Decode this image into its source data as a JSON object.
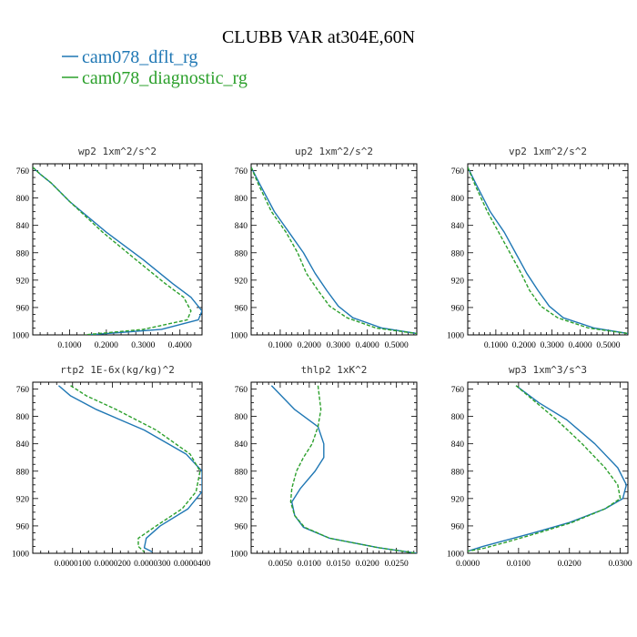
{
  "figure": {
    "title": "CLUBB VAR at304E,60N",
    "legend": [
      {
        "label": "cam078_dflt_rg",
        "color": "#1f77b4"
      },
      {
        "label": "cam078_diagnostic_rg",
        "color": "#2ca02c"
      }
    ]
  },
  "chart_data": [
    {
      "type": "line",
      "title": "wp2   1xm^2/s^2",
      "ylim": [
        1000,
        750
      ],
      "y_ticks": [
        760,
        800,
        840,
        880,
        920,
        960,
        1000
      ],
      "xlim": [
        0.0,
        0.46
      ],
      "x_ticks": [
        0.1,
        0.2,
        0.3,
        0.4
      ],
      "x_tick_labels": [
        "0.1000",
        "0.2000",
        "0.3000",
        "0.4000"
      ],
      "series": [
        {
          "color": "#1f77b4",
          "x": [
            0.0,
            0.02,
            0.05,
            0.1,
            0.2,
            0.3,
            0.38,
            0.43,
            0.46,
            0.45,
            0.35,
            0.15
          ],
          "y": [
            755,
            765,
            778,
            805,
            850,
            890,
            925,
            945,
            965,
            978,
            992,
            1000
          ]
        },
        {
          "color": "#2ca02c",
          "dashed": true,
          "x": [
            0.0,
            0.02,
            0.05,
            0.1,
            0.19,
            0.28,
            0.36,
            0.41,
            0.43,
            0.42,
            0.3,
            0.14
          ],
          "y": [
            755,
            765,
            778,
            805,
            850,
            890,
            925,
            945,
            965,
            978,
            992,
            1000
          ]
        }
      ]
    },
    {
      "type": "line",
      "title": "up2   1xm^2/s^2",
      "ylim": [
        1000,
        750
      ],
      "y_ticks": [
        760,
        800,
        840,
        880,
        920,
        960,
        1000
      ],
      "xlim": [
        0.0,
        0.57
      ],
      "x_ticks": [
        0.1,
        0.2,
        0.3,
        0.4,
        0.5
      ],
      "x_tick_labels": [
        "0.1000",
        "0.2000",
        "0.3000",
        "0.4000",
        "0.5000"
      ],
      "series": [
        {
          "color": "#1f77b4",
          "x": [
            0.0,
            0.03,
            0.08,
            0.13,
            0.18,
            0.22,
            0.26,
            0.3,
            0.35,
            0.45,
            0.57
          ],
          "y": [
            755,
            780,
            820,
            850,
            880,
            910,
            935,
            958,
            975,
            990,
            998
          ]
        },
        {
          "color": "#2ca02c",
          "dashed": true,
          "x": [
            0.0,
            0.025,
            0.07,
            0.12,
            0.16,
            0.19,
            0.23,
            0.27,
            0.33,
            0.43,
            0.57
          ],
          "y": [
            755,
            780,
            820,
            850,
            880,
            910,
            935,
            958,
            975,
            990,
            998
          ]
        }
      ]
    },
    {
      "type": "line",
      "title": "vp2   1xm^2/s^2",
      "ylim": [
        1000,
        750
      ],
      "y_ticks": [
        760,
        800,
        840,
        880,
        920,
        960,
        1000
      ],
      "xlim": [
        0.0,
        0.57
      ],
      "x_ticks": [
        0.1,
        0.2,
        0.3,
        0.4,
        0.5
      ],
      "x_tick_labels": [
        "0.1000",
        "0.2000",
        "0.3000",
        "0.4000",
        "0.5000"
      ],
      "series": [
        {
          "color": "#1f77b4",
          "x": [
            0.0,
            0.03,
            0.08,
            0.13,
            0.17,
            0.21,
            0.25,
            0.29,
            0.34,
            0.45,
            0.57
          ],
          "y": [
            755,
            780,
            820,
            850,
            880,
            910,
            935,
            958,
            975,
            990,
            998
          ]
        },
        {
          "color": "#2ca02c",
          "dashed": true,
          "x": [
            0.0,
            0.025,
            0.07,
            0.11,
            0.15,
            0.19,
            0.22,
            0.26,
            0.32,
            0.43,
            0.57
          ],
          "y": [
            755,
            780,
            820,
            850,
            880,
            910,
            935,
            958,
            975,
            990,
            998
          ]
        }
      ]
    },
    {
      "type": "line",
      "title": "rtp2   1E-6x(kg/kg)^2",
      "ylim": [
        1000,
        750
      ],
      "y_ticks": [
        760,
        800,
        840,
        880,
        920,
        960,
        1000
      ],
      "xlim": [
        0.0,
        4.25e-05
      ],
      "x_ticks": [
        1e-05,
        2e-05,
        3e-05,
        4e-05
      ],
      "x_tick_labels": [
        "0.0000100",
        "0.0000200",
        "0.0000300",
        "0.0000400"
      ],
      "series": [
        {
          "color": "#1f77b4",
          "x": [
            6.5e-06,
            9.5e-06,
            1.6e-05,
            2.8e-05,
            3.85e-05,
            4.25e-05,
            4.25e-05,
            3.9e-05,
            3.2e-05,
            2.85e-05,
            2.8e-05,
            3e-05
          ],
          "y": [
            755,
            770,
            790,
            820,
            855,
            880,
            910,
            935,
            960,
            978,
            992,
            998
          ]
        },
        {
          "color": "#2ca02c",
          "dashed": true,
          "x": [
            9.5e-06,
            1.35e-05,
            2.1e-05,
            3.1e-05,
            3.95e-05,
            4.2e-05,
            4.1e-05,
            3.75e-05,
            3.1e-05,
            2.65e-05,
            2.65e-05,
            2.8e-05
          ],
          "y": [
            755,
            770,
            790,
            820,
            855,
            880,
            910,
            935,
            960,
            978,
            990,
            998
          ]
        }
      ]
    },
    {
      "type": "line",
      "title": "thlp2   1xK^2",
      "ylim": [
        1000,
        750
      ],
      "y_ticks": [
        760,
        800,
        840,
        880,
        920,
        960,
        1000
      ],
      "xlim": [
        0.0,
        0.0285
      ],
      "x_ticks": [
        0.005,
        0.01,
        0.015,
        0.02,
        0.025
      ],
      "x_tick_labels": [
        "0.0050",
        "0.0100",
        "0.0150",
        "0.0200",
        "0.0250"
      ],
      "series": [
        {
          "color": "#1f77b4",
          "x": [
            0.0035,
            0.0075,
            0.0115,
            0.0125,
            0.0125,
            0.011,
            0.0085,
            0.007,
            0.0075,
            0.009,
            0.0135,
            0.022,
            0.0285
          ],
          "y": [
            755,
            790,
            815,
            840,
            860,
            880,
            905,
            925,
            945,
            962,
            978,
            992,
            1000
          ]
        },
        {
          "color": "#2ca02c",
          "dashed": true,
          "x": [
            0.0115,
            0.012,
            0.0115,
            0.0105,
            0.009,
            0.0078,
            0.007,
            0.0068,
            0.0075,
            0.0092,
            0.0135,
            0.022,
            0.0285
          ],
          "y": [
            755,
            790,
            815,
            840,
            860,
            880,
            905,
            925,
            945,
            962,
            978,
            992,
            1000
          ]
        }
      ]
    },
    {
      "type": "line",
      "title": "wp3   1xm^3/s^3",
      "ylim": [
        1000,
        750
      ],
      "y_ticks": [
        760,
        800,
        840,
        880,
        920,
        960,
        1000
      ],
      "xlim": [
        0.0,
        0.0315
      ],
      "x_ticks": [
        0.0,
        0.01,
        0.02,
        0.03
      ],
      "x_tick_labels": [
        "0.0000",
        "0.0100",
        "0.0200",
        "0.0300"
      ],
      "series": [
        {
          "color": "#1f77b4",
          "x": [
            0.0095,
            0.014,
            0.0195,
            0.025,
            0.0295,
            0.0312,
            0.0305,
            0.027,
            0.02,
            0.013,
            0.008,
            0.003,
            0.0
          ],
          "y": [
            755,
            780,
            805,
            840,
            875,
            900,
            920,
            935,
            955,
            970,
            980,
            990,
            997
          ]
        },
        {
          "color": "#2ca02c",
          "dashed": true,
          "x": [
            0.0095,
            0.0135,
            0.0175,
            0.0225,
            0.027,
            0.0295,
            0.03,
            0.027,
            0.0205,
            0.014,
            0.007,
            0.003,
            0.0
          ],
          "y": [
            755,
            780,
            805,
            840,
            875,
            900,
            920,
            935,
            955,
            970,
            985,
            993,
            997
          ]
        }
      ]
    }
  ]
}
